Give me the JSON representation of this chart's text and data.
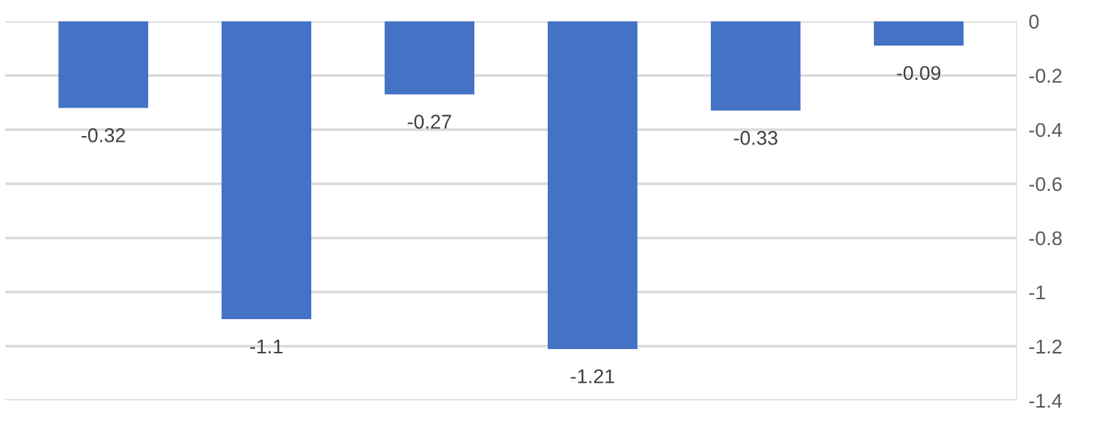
{
  "chart_data": {
    "type": "bar",
    "categories": [
      null,
      null,
      null,
      null,
      null,
      null
    ],
    "values": [
      -0.32,
      -1.1,
      -0.27,
      -1.21,
      -0.33,
      -0.09
    ],
    "color": "#4472c4",
    "ylim": [
      -1.4,
      0
    ],
    "yticks": [
      0,
      -0.2,
      -0.4,
      -0.6,
      -0.8,
      -1,
      -1.2,
      -1.4
    ],
    "grid": "y",
    "data_labels": true,
    "tick_labels": "y"
  }
}
